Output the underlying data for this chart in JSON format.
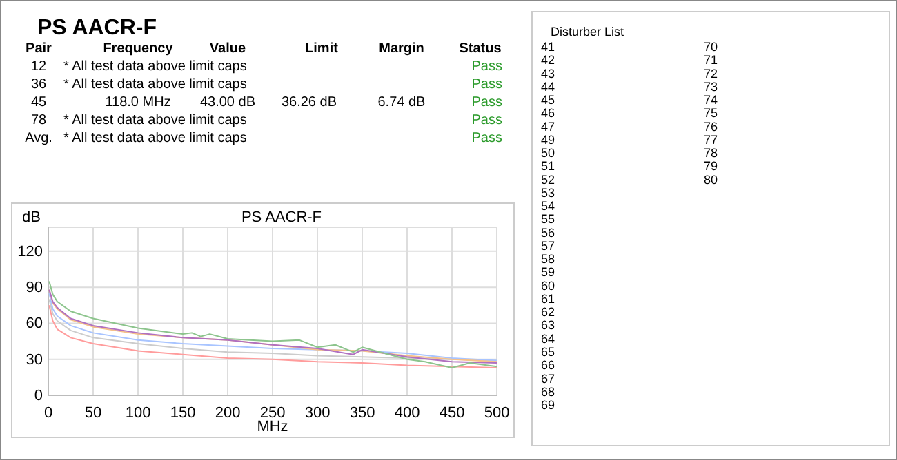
{
  "chart_data": {
    "type": "line",
    "title": "PS AACR-F",
    "ylabel": "dB",
    "xlabel": "MHz",
    "xlim": [
      0,
      500
    ],
    "ylim": [
      0,
      140
    ],
    "xticks": [
      0,
      50,
      100,
      150,
      200,
      250,
      300,
      350,
      400,
      450,
      500
    ],
    "yticks": [
      0,
      30,
      60,
      90,
      120
    ],
    "grid": true,
    "marker": "none",
    "line_style": "solid",
    "series": [
      {
        "color": "#ff9c9c",
        "x": [
          1,
          5,
          10,
          25,
          50,
          100,
          150,
          200,
          250,
          300,
          350,
          400,
          450,
          500
        ],
        "values": [
          75,
          62,
          55,
          48,
          43,
          37,
          34,
          31,
          30,
          28,
          27,
          25,
          24,
          23
        ]
      },
      {
        "color": "#cccccc",
        "x": [
          1,
          5,
          10,
          25,
          50,
          100,
          150,
          200,
          250,
          300,
          350,
          400,
          450,
          500
        ],
        "values": [
          80,
          68,
          62,
          54,
          48,
          43,
          39,
          36,
          35,
          33,
          32,
          31,
          30,
          29
        ]
      },
      {
        "color": "#a8c4ff",
        "x": [
          1,
          5,
          10,
          25,
          50,
          100,
          150,
          200,
          250,
          300,
          350,
          400,
          450,
          500
        ],
        "values": [
          85,
          72,
          66,
          58,
          52,
          46,
          43,
          41,
          39,
          38,
          37,
          35,
          31,
          29
        ]
      },
      {
        "color": "#f5c08a",
        "x": [
          1,
          5,
          10,
          25,
          50,
          100,
          150,
          200,
          250,
          300,
          350,
          400,
          450,
          500
        ],
        "values": [
          88,
          77,
          72,
          63,
          57,
          51,
          48,
          46,
          42,
          38,
          37,
          33,
          30,
          28
        ]
      },
      {
        "color": "#b070c0",
        "x": [
          1,
          5,
          10,
          25,
          50,
          100,
          150,
          200,
          250,
          300,
          340,
          350,
          400,
          450,
          500
        ],
        "values": [
          88,
          78,
          73,
          64,
          58,
          52,
          48,
          46,
          42,
          39,
          34,
          38,
          32,
          28,
          27
        ]
      },
      {
        "color": "#8cc48c",
        "x": [
          1,
          5,
          10,
          25,
          50,
          100,
          150,
          160,
          170,
          180,
          200,
          250,
          280,
          300,
          320,
          340,
          350,
          360,
          400,
          420,
          450,
          470,
          500
        ],
        "values": [
          95,
          84,
          78,
          70,
          64,
          56,
          51,
          52,
          49,
          51,
          47,
          45,
          46,
          40,
          42,
          36,
          40,
          38,
          30,
          28,
          23,
          27,
          24
        ]
      }
    ],
    "annotations": [
      "PS AACR-F",
      "Pair",
      "Frequency",
      "Value",
      "Limit",
      "Margin",
      "Status",
      "12",
      "* All test data above limit caps",
      "Pass",
      "36",
      "* All test data above limit caps",
      "Pass",
      "45",
      "118.0 MHz",
      "43.00 dB",
      "36.26 dB",
      "6.74 dB",
      "Pass",
      "78",
      "* All test data above limit caps",
      "Pass",
      "Avg.",
      "* All test data above limit caps",
      "Pass",
      "Disturber List",
      "41",
      "42",
      "43",
      "44",
      "45",
      "46",
      "47",
      "49",
      "50",
      "51",
      "52",
      "53",
      "54",
      "55",
      "56",
      "57",
      "58",
      "59",
      "60",
      "61",
      "62",
      "63",
      "64",
      "65",
      "66",
      "67",
      "68",
      "69",
      "70",
      "71",
      "72",
      "73",
      "74",
      "75",
      "76",
      "77",
      "78",
      "79",
      "80"
    ]
  }
}
